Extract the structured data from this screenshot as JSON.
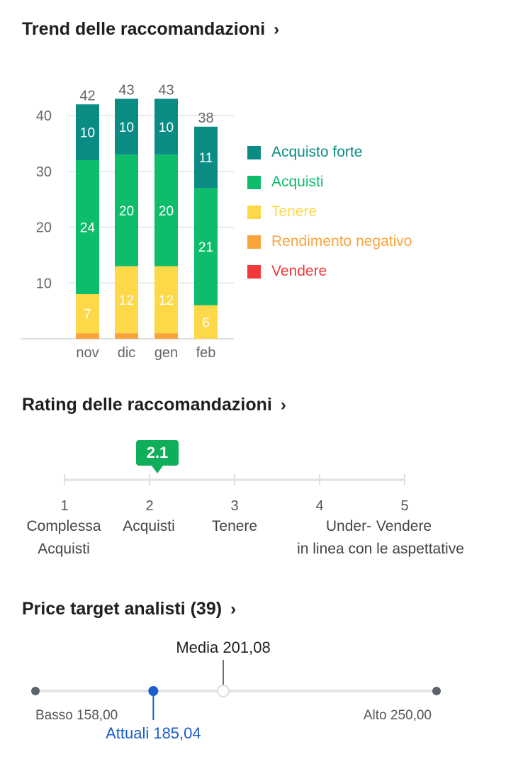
{
  "sections": {
    "trend_title": "Trend delle raccomandazioni",
    "rating_title": "Rating delle raccomandazioni",
    "price_title": "Price target analisti (39)",
    "chevron_icon": "chevron-right-icon"
  },
  "chart_data": [
    {
      "type": "bar",
      "stacked": true,
      "categories": [
        "nov",
        "dic",
        "gen",
        "feb"
      ],
      "totals": [
        42,
        43,
        43,
        38
      ],
      "series": [
        {
          "name": "Vendere",
          "color": "#f03a3a",
          "values": [
            0,
            0,
            0,
            0
          ]
        },
        {
          "name": "Rendimento negativo",
          "color": "#f9a43b",
          "values": [
            1,
            1,
            1,
            0
          ]
        },
        {
          "name": "Tenere",
          "color": "#fdd94a",
          "values": [
            7,
            12,
            12,
            6
          ]
        },
        {
          "name": "Acquisti",
          "color": "#0dbd6c",
          "values": [
            24,
            20,
            20,
            21
          ]
        },
        {
          "name": "Acquisto forte",
          "color": "#0a8b84",
          "values": [
            10,
            10,
            10,
            11
          ]
        }
      ],
      "legend_order": [
        "Acquisto forte",
        "Acquisti",
        "Tenere",
        "Rendimento negativo",
        "Vendere"
      ],
      "yticks": [
        10,
        20,
        30,
        40
      ],
      "ylim": [
        0,
        40
      ],
      "grid": true,
      "legend": "right"
    },
    {
      "type": "scale",
      "value": 2.1,
      "value_label": "2.1",
      "ticks": [
        {
          "num": "1",
          "label": "Complessa\nAcquisti"
        },
        {
          "num": "2",
          "label": "Acquisti"
        },
        {
          "num": "3",
          "label": "Tenere"
        },
        {
          "num": "4",
          "label": "Under-\nin linea con le aspettative"
        },
        {
          "num": "5",
          "label": "Vendere"
        }
      ]
    },
    {
      "type": "range",
      "low": 158.0,
      "high": 250.0,
      "average": 201.08,
      "current": 185.04,
      "low_label": "Basso 158,00",
      "high_label": "Alto 250,00",
      "average_label": "Media 201,08",
      "current_label": "Attuali 185,04",
      "current_color": "#1a5fcc"
    }
  ]
}
